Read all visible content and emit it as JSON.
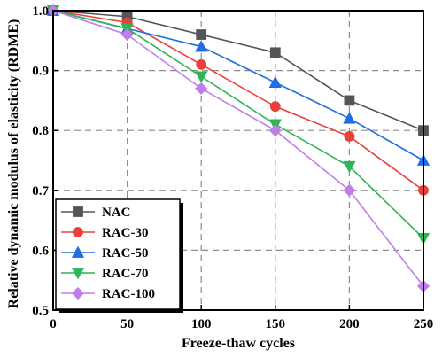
{
  "chart_data": {
    "type": "line",
    "xlabel": "Freeze-thaw cycles",
    "ylabel": "Relative dynamic modulus of elasticity (RDME)",
    "x": [
      0,
      50,
      100,
      150,
      200,
      250
    ],
    "xlim": [
      0,
      250
    ],
    "ylim": [
      0.5,
      1.0
    ],
    "xticks": [
      "0",
      "50",
      "100",
      "150",
      "200",
      "250"
    ],
    "yticks": [
      "0.5",
      "0.6",
      "0.7",
      "0.8",
      "0.9",
      "1.0"
    ],
    "grid": true,
    "legend_position": "bottom-left",
    "series": [
      {
        "name": "NAC",
        "color": "#555555",
        "marker": "square",
        "values": [
          1.0,
          0.99,
          0.96,
          0.93,
          0.85,
          0.8
        ]
      },
      {
        "name": "RAC-30",
        "color": "#e8413c",
        "marker": "circle",
        "values": [
          1.0,
          0.98,
          0.91,
          0.84,
          0.79,
          0.7
        ]
      },
      {
        "name": "RAC-50",
        "color": "#1f6fe0",
        "marker": "triangle-up",
        "values": [
          1.0,
          0.97,
          0.94,
          0.88,
          0.82,
          0.75
        ]
      },
      {
        "name": "RAC-70",
        "color": "#2fb456",
        "marker": "triangle-down",
        "values": [
          1.0,
          0.97,
          0.89,
          0.81,
          0.74,
          0.62
        ]
      },
      {
        "name": "RAC-100",
        "color": "#c07ee8",
        "marker": "diamond",
        "values": [
          1.0,
          0.96,
          0.87,
          0.8,
          0.7,
          0.54
        ]
      }
    ]
  }
}
